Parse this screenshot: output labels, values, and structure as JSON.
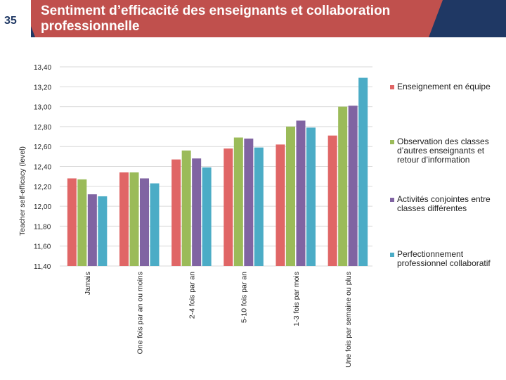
{
  "header": {
    "slide_number": "35",
    "title": "Sentiment d’efficacité des enseignants et collaboration professionnelle"
  },
  "colors": {
    "header_bg": "#1f3864",
    "header_accent": "#c0504d",
    "series": [
      "#e06666",
      "#9bbb59",
      "#8064a2",
      "#4bacc6"
    ]
  },
  "chart_data": {
    "type": "bar",
    "title": "",
    "xlabel": "",
    "ylabel": "Teacher self-efficacy (level)",
    "ylim": [
      11.4,
      13.4
    ],
    "yticks": [
      "11,40",
      "11,60",
      "11,80",
      "12,00",
      "12,20",
      "12,40",
      "12,60",
      "12,80",
      "13,00",
      "13,20",
      "13,40"
    ],
    "categories": [
      "Jamais",
      "One fois par an ou moins",
      "2-4 fois par an",
      "5-10 fois par an",
      "1-3 fois par mois",
      "Une fois par semaine ou plus"
    ],
    "series": [
      {
        "name": "Enseignement en équipe",
        "values": [
          12.28,
          12.34,
          12.47,
          12.58,
          12.62,
          12.71
        ]
      },
      {
        "name": "Observation des classes d’autres enseignants et retour d’information",
        "values": [
          12.27,
          12.34,
          12.56,
          12.69,
          12.8,
          13.0
        ]
      },
      {
        "name": "Activités conjointes entre classes différentes",
        "values": [
          12.12,
          12.28,
          12.48,
          12.68,
          12.86,
          13.01
        ]
      },
      {
        "name": "Perfectionnement professionnel collaboratif",
        "values": [
          12.1,
          12.23,
          12.39,
          12.59,
          12.79,
          13.29
        ]
      }
    ],
    "legend_position": "right"
  }
}
